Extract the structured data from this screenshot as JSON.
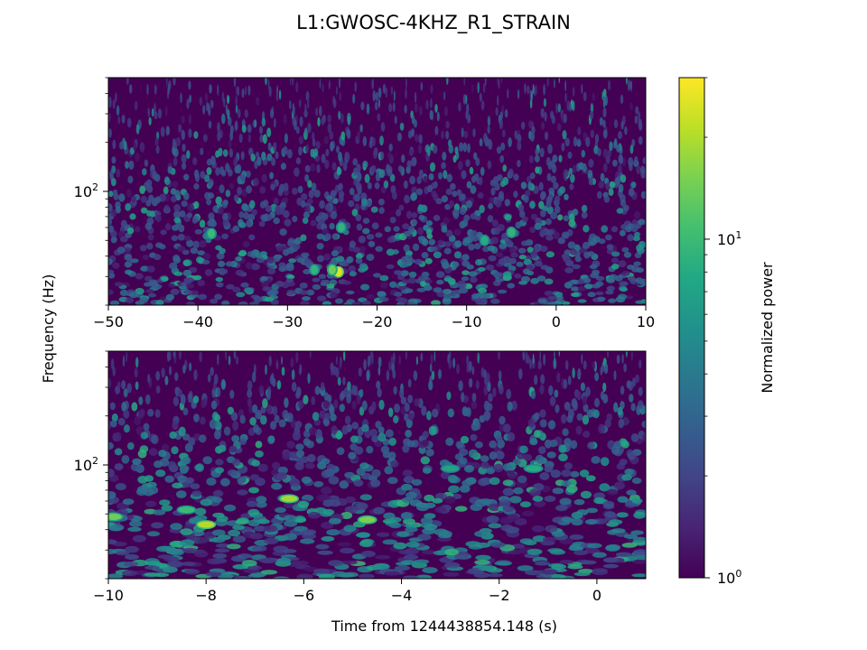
{
  "chart_data": {
    "type": "heatmap",
    "title": "L1:GWOSC-4KHZ_R1_STRAIN",
    "shared_ylabel": "Frequency (Hz)",
    "shared_xlabel": "Time from 1244438854.148 (s)",
    "panels": [
      {
        "xlim": [
          -50,
          10
        ],
        "xticks": [
          -50,
          -40,
          -30,
          -20,
          -10,
          0,
          10
        ],
        "xtick_labels": [
          "−50",
          "−40",
          "−30",
          "−20",
          "−10",
          "0",
          "10"
        ],
        "yscale": "log",
        "ylim": [
          20,
          500
        ],
        "ytick_major": {
          "value": 100,
          "base": "10",
          "exp": "2"
        },
        "highlights": [
          {
            "t": -24.3,
            "f": 32,
            "power": 25
          },
          {
            "t": -25.0,
            "f": 33,
            "power": 14
          },
          {
            "t": -38.5,
            "f": 55,
            "power": 10
          },
          {
            "t": -27.0,
            "f": 33,
            "power": 9
          },
          {
            "t": -24.0,
            "f": 60,
            "power": 9
          },
          {
            "t": -5.0,
            "f": 56,
            "power": 9
          },
          {
            "t": -8.0,
            "f": 50,
            "power": 8
          }
        ]
      },
      {
        "xlim": [
          -10,
          1
        ],
        "xticks": [
          -10,
          -8,
          -6,
          -4,
          -2,
          0
        ],
        "xtick_labels": [
          "−10",
          "−8",
          "−6",
          "−4",
          "−2",
          "0"
        ],
        "yscale": "log",
        "ylim": [
          20,
          500
        ],
        "ytick_major": {
          "value": 100,
          "base": "10",
          "exp": "2"
        },
        "highlights": [
          {
            "t": -8.0,
            "f": 43,
            "power": 20
          },
          {
            "t": -6.3,
            "f": 62,
            "power": 18
          },
          {
            "t": -4.7,
            "f": 46,
            "power": 15
          },
          {
            "t": -9.9,
            "f": 48,
            "power": 14
          },
          {
            "t": -8.4,
            "f": 53,
            "power": 10
          },
          {
            "t": -1.3,
            "f": 95,
            "power": 8
          },
          {
            "t": -3.0,
            "f": 95,
            "power": 7
          }
        ]
      }
    ],
    "colorbar": {
      "label": "Normalized power",
      "scale": "log",
      "colormap": "viridis",
      "range": [
        1,
        30
      ],
      "ticks": [
        {
          "value": 1,
          "base": "10",
          "exp": "0"
        },
        {
          "value": 10,
          "base": "10",
          "exp": "1"
        }
      ]
    }
  }
}
